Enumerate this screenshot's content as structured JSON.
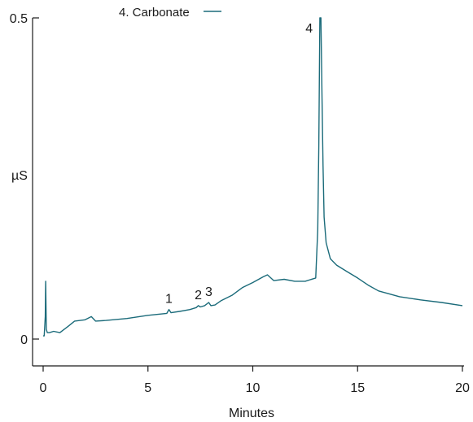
{
  "chart_data": {
    "type": "line",
    "title": "",
    "xlabel": "Minutes",
    "ylabel": "µS",
    "xlim": [
      0,
      20
    ],
    "ylim": [
      0,
      0.5
    ],
    "x_ticks": [
      0,
      5,
      10,
      15,
      20
    ],
    "x_tick_labels": [
      "0",
      "5",
      "10",
      "15",
      "20"
    ],
    "y_ticks": [
      0,
      0.5
    ],
    "y_tick_labels": [
      "0",
      "0.5"
    ],
    "grid": false,
    "legend": [
      {
        "label": "4. Carbonate",
        "position": "top"
      }
    ],
    "series": [
      {
        "color": "#1b6b7a",
        "x": [
          0.0,
          0.05,
          0.1,
          0.12,
          0.15,
          0.2,
          0.3,
          0.5,
          0.8,
          1.0,
          1.2,
          1.5,
          2.0,
          2.3,
          2.5,
          3.0,
          4.0,
          5.0,
          5.9,
          6.0,
          6.1,
          6.5,
          7.0,
          7.3,
          7.4,
          7.5,
          7.7,
          7.9,
          8.0,
          8.2,
          8.5,
          9.0,
          9.5,
          10.0,
          10.5,
          10.7,
          11.0,
          11.5,
          12.0,
          12.5,
          13.0,
          13.1,
          13.15,
          13.2,
          13.25,
          13.3,
          13.35,
          13.4,
          13.5,
          13.7,
          14.0,
          14.5,
          15.0,
          15.5,
          16.0,
          17.0,
          18.0,
          19.0,
          20.0
        ],
        "y": [
          0.005,
          0.005,
          0.035,
          0.09,
          0.015,
          0.01,
          0.01,
          0.012,
          0.01,
          0.015,
          0.02,
          0.028,
          0.03,
          0.035,
          0.028,
          0.029,
          0.032,
          0.037,
          0.04,
          0.046,
          0.041,
          0.043,
          0.046,
          0.049,
          0.052,
          0.05,
          0.052,
          0.057,
          0.052,
          0.053,
          0.06,
          0.068,
          0.08,
          0.088,
          0.097,
          0.1,
          0.091,
          0.093,
          0.09,
          0.09,
          0.095,
          0.17,
          0.3,
          0.5,
          0.5,
          0.38,
          0.27,
          0.19,
          0.15,
          0.125,
          0.115,
          0.105,
          0.095,
          0.084,
          0.075,
          0.066,
          0.061,
          0.057,
          0.052
        ]
      }
    ],
    "peak_labels": [
      {
        "text": "1",
        "x": 6.0,
        "y": 0.046
      },
      {
        "text": "2",
        "x": 7.4,
        "y": 0.052
      },
      {
        "text": "3",
        "x": 7.9,
        "y": 0.057
      },
      {
        "text": "4",
        "x": 13.0,
        "y": 0.5
      }
    ]
  }
}
